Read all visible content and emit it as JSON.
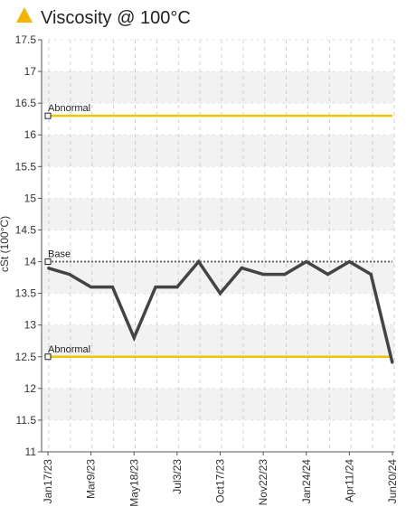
{
  "title": "Viscosity @ 100°C",
  "colors": {
    "title_icon": "#f2b500",
    "series_line": "#444444",
    "abnormal_line": "#f2c400",
    "base_line": "#666666",
    "band_light": "#f2f2f2",
    "band_white": "#ffffff",
    "grid": "#cfcfcf",
    "axis": "#555555"
  },
  "chart_data": {
    "type": "line",
    "title": "Viscosity @ 100°C",
    "ylabel": "cSt (100°C)",
    "xlabel": "",
    "ylim": [
      11,
      17.5
    ],
    "yticks": [
      "17.5",
      "17",
      "16.5",
      "16",
      "15.5",
      "15",
      "14.5",
      "14",
      "13.5",
      "13",
      "12.5",
      "12",
      "11.5",
      "11"
    ],
    "xtick_labels": [
      "Jan17/23",
      "Mar9/23",
      "May18/23",
      "Jul3/23",
      "Oct17/23",
      "Nov22/23",
      "Jan24/24",
      "Apr11/24",
      "Jun20/24"
    ],
    "series": [
      {
        "values": [
          13.9,
          13.8,
          13.6,
          13.6,
          12.8,
          13.6,
          13.6,
          14.0,
          13.5,
          13.9,
          13.8,
          13.8,
          14.0,
          13.8,
          14.0,
          13.8,
          12.4
        ]
      }
    ],
    "reference_lines": [
      {
        "label": "Abnormal",
        "value": 16.3,
        "style": "abnormal"
      },
      {
        "label": "Base",
        "value": 14.0,
        "style": "base"
      },
      {
        "label": "Abnormal",
        "value": 12.5,
        "style": "abnormal"
      }
    ],
    "grid": true,
    "legend": "none"
  }
}
